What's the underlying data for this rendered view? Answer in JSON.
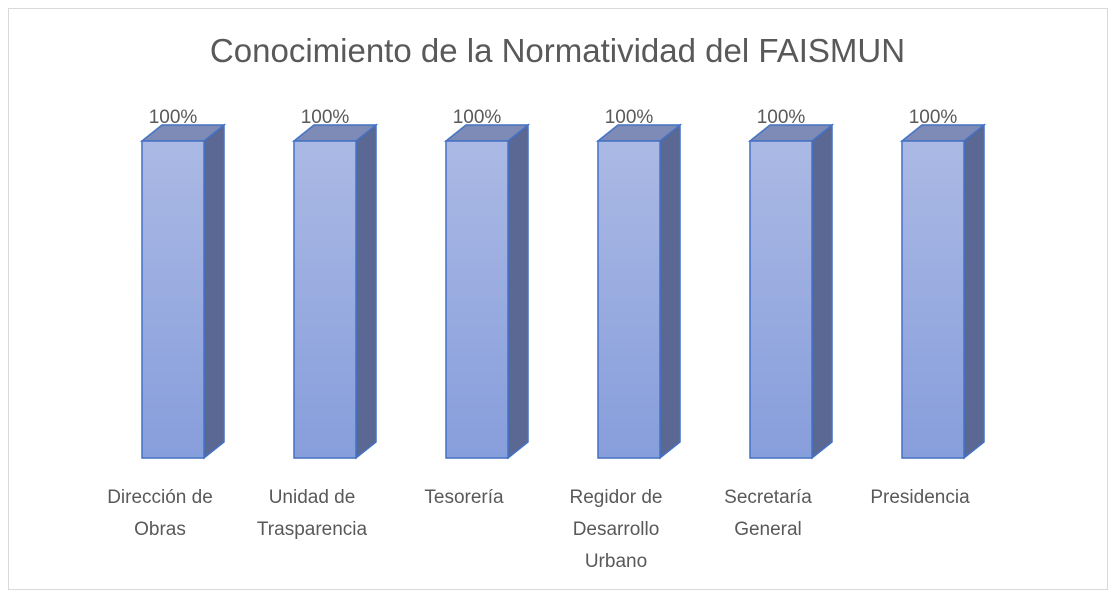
{
  "chart_data": {
    "type": "bar3d",
    "title": "Conocimiento de la Normatividad del FAISMUN",
    "categories": [
      "Dirección de Obras",
      "Unidad de Trasparencia",
      "Tesorería",
      "Regidor de Desarrollo Urbano",
      "Secretaría General",
      "Presidencia"
    ],
    "values": [
      100,
      100,
      100,
      100,
      100,
      100
    ],
    "value_labels": [
      "100%",
      "100%",
      "100%",
      "100%",
      "100%",
      "100%"
    ],
    "color": "#8fa3dd",
    "ylim": [
      0,
      100
    ]
  }
}
